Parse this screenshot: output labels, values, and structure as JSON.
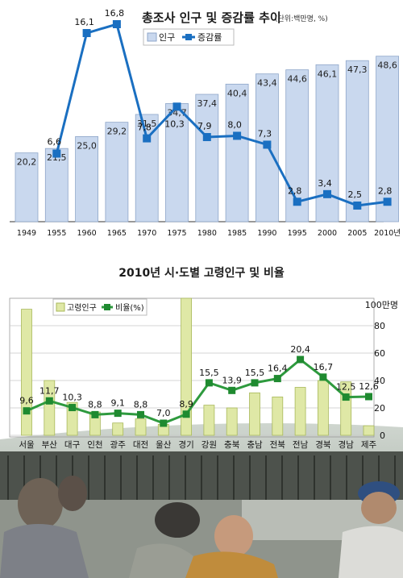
{
  "chart_data": [
    {
      "type": "bar",
      "title": "총조사 인구 및 증감률 추이",
      "unit_note": "(단위:백만명, %)",
      "legend": [
        "인구",
        "증감률"
      ],
      "categories": [
        "1949",
        "1955",
        "1960",
        "1965",
        "1970",
        "1975",
        "1980",
        "1985",
        "1990",
        "1995",
        "2000",
        "2005",
        "2010년"
      ],
      "series": [
        {
          "name": "인구",
          "type": "bar",
          "values": [
            20.2,
            21.5,
            25.0,
            29.2,
            31.5,
            34.7,
            37.4,
            40.4,
            43.4,
            44.6,
            46.1,
            47.3,
            48.6
          ],
          "labels": [
            "20,2",
            "21,5",
            "25,0",
            "29,2",
            "31,5",
            "34,7",
            "37,4",
            "40,4",
            "43,4",
            "44,6",
            "46,1",
            "47,3",
            "48,6"
          ]
        },
        {
          "name": "증감률",
          "type": "line",
          "values": [
            null,
            6.6,
            16.1,
            16.8,
            7.8,
            10.3,
            7.9,
            8.0,
            7.3,
            2.8,
            3.4,
            2.5,
            2.8
          ],
          "labels": [
            "",
            "6,6",
            "16,1",
            "16,8",
            "7,8",
            "10,3",
            "7,9",
            "8,0",
            "7,3",
            "2,8",
            "3,4",
            "2,5",
            "2,8"
          ]
        }
      ],
      "colors": {
        "bar": "#c9d8ee",
        "bar_border": "#8ea6c9",
        "line": "#1a6fc1"
      }
    },
    {
      "type": "bar",
      "title": "2010년 시·도별 고령인구 및 비율",
      "legend": [
        "고령인구",
        "비율(%)"
      ],
      "categories": [
        "서울",
        "부산",
        "대구",
        "인천",
        "광주",
        "대전",
        "울산",
        "경기",
        "강원",
        "충북",
        "충남",
        "전북",
        "전남",
        "경북",
        "경남",
        "제주"
      ],
      "y_axis_unit": "100만명",
      "y_ticks": [
        "0",
        "20",
        "40",
        "60",
        "80"
      ],
      "ylim": [
        0,
        100
      ],
      "series": [
        {
          "name": "고령인구",
          "type": "bar",
          "values": [
            92,
            40,
            24,
            17,
            9,
            12,
            8,
            100,
            22,
            20,
            31,
            28,
            35,
            40,
            39,
            7
          ]
        },
        {
          "name": "비율(%)",
          "type": "line",
          "values": [
            9.6,
            11.7,
            10.3,
            8.8,
            9.1,
            8.8,
            7.0,
            8.9,
            15.5,
            13.9,
            15.5,
            16.4,
            20.4,
            16.7,
            12.5,
            12.6
          ],
          "labels": [
            "9,6",
            "11,7",
            "10,3",
            "8,8",
            "9,1",
            "8,8",
            "7,0",
            "8,9",
            "15,5",
            "13,9",
            "15,5",
            "16,4",
            "20,4",
            "16,7",
            "12,5",
            "12,6"
          ]
        }
      ],
      "colors": {
        "bar": "#dfe8a6",
        "bar_border": "#a8b85a",
        "line": "#2e9a3e",
        "marker": "#1f8a30"
      }
    }
  ]
}
